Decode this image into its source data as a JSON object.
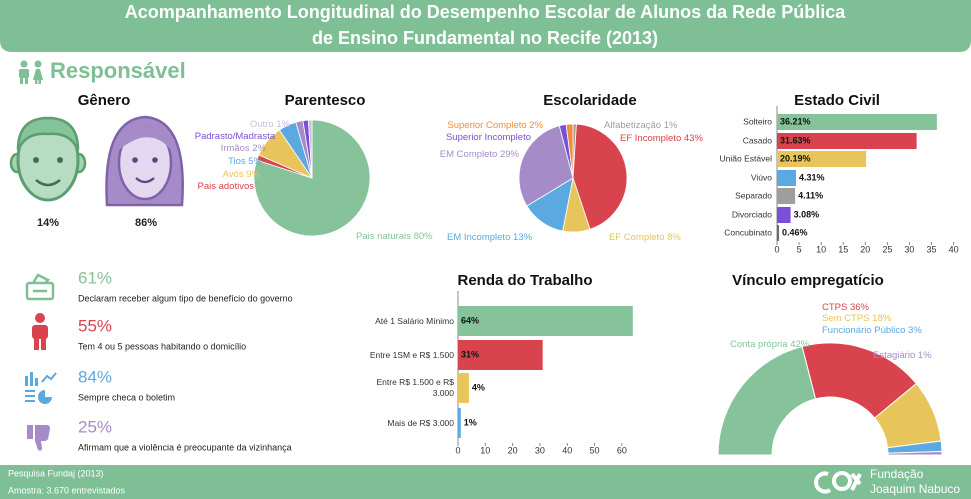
{
  "header": {
    "title": [
      "Acompanhamento Longitudinal do Desempenho Escolar de Alunos da Rede Pública",
      "de Ensino Fundamental no Recife (2013)"
    ]
  },
  "section": "Responsável",
  "gender": {
    "title": "Gênero",
    "items": [
      "14%",
      "86%"
    ]
  },
  "indicators": [
    {
      "value": "61%",
      "text": "Declaram receber algum tipo de benefício do governo",
      "color": "#86c29a"
    },
    {
      "value": "55%",
      "text": "Tem 4 ou 5 pessoas habitando o domicílio",
      "color": "#d9434e"
    },
    {
      "value": "84%",
      "text": "Sempre checa o boletim",
      "color": "#5aa9e0"
    },
    {
      "value": "25%",
      "text": "Afirmam que a violência é preocupante da vizinhança",
      "color": "#a58cc8"
    }
  ],
  "footer": {
    "source": "Pesquisa Fundaj (2013)",
    "sample": "Amostra: 3.670 entrevistados",
    "logo": [
      "Fundação",
      "Joaquim Nabuco"
    ]
  },
  "chart_data": [
    {
      "type": "pie",
      "title": "Parentesco",
      "categories": [
        "Pais naturais",
        "Pais adotivos",
        "Avós",
        "Tios",
        "Irmãos",
        "Padrasto/Madrasta",
        "Outro"
      ],
      "values": [
        80,
        1.5,
        9,
        5,
        2,
        1.5,
        1
      ],
      "value_labels": [
        "80%",
        null,
        "9%",
        "5%",
        "2%",
        null,
        "1%"
      ],
      "colors": [
        "#86c29a",
        "#d9434e",
        "#e8c55a",
        "#5aa9e0",
        "#a58cc8",
        "#7b4fd8",
        "#c6c0e0"
      ]
    },
    {
      "type": "pie",
      "title": "Escolaridade",
      "categories": [
        "Alfabetização",
        "EF Incompleto",
        "EF Completo",
        "EM Incompleto",
        "EM Completo",
        "Superior Incompleto",
        "Superior Completo"
      ],
      "values": [
        1,
        43,
        8,
        13,
        29,
        2,
        2
      ],
      "value_labels": [
        "1%",
        "43%",
        "8%",
        "13%",
        "29%",
        null,
        "2%"
      ],
      "colors": [
        "#9e9e9e",
        "#d9434e",
        "#e8c55a",
        "#5aa9e0",
        "#a58cc8",
        "#7b4fd8",
        "#f08c3a"
      ]
    },
    {
      "type": "bar",
      "orientation": "horizontal",
      "title": "Estado Civil",
      "categories": [
        "Solteiro",
        "Casado",
        "União Estável",
        "Viúvo",
        "Separado",
        "Divorciado",
        "Concubinato"
      ],
      "values": [
        36.21,
        31.63,
        20.19,
        4.31,
        4.11,
        3.08,
        0.46
      ],
      "value_labels": [
        "36.21%",
        "31.63%",
        "20.19%",
        "4.31%",
        "4.11%",
        "3.08%",
        "0.46%"
      ],
      "colors": [
        "#86c29a",
        "#d9434e",
        "#e8c55a",
        "#5aa9e0",
        "#9e9e9e",
        "#7b4fd8",
        "#6d6d6d"
      ],
      "xlim": [
        0,
        41
      ],
      "xticks": [
        0,
        5,
        10,
        15,
        20,
        25,
        30,
        35,
        40
      ]
    },
    {
      "type": "bar",
      "orientation": "horizontal",
      "title": "Renda do Trabalho",
      "categories": [
        "Até 1 Salário Mínimo",
        "Entre 1SM e R$ 1.500",
        "Entre R$ 1.500 e R$ 3.000",
        "Mais de R$ 3.000"
      ],
      "values": [
        64,
        31,
        4,
        1
      ],
      "value_labels": [
        "64%",
        "31%",
        "4%",
        "1%"
      ],
      "colors": [
        "#86c29a",
        "#d9434e",
        "#e8c55a",
        "#5aa9e0"
      ],
      "xlim": [
        0,
        67
      ],
      "xticks": [
        0,
        10,
        20,
        30,
        40,
        50,
        60
      ]
    },
    {
      "type": "semidonut",
      "title": "Vínculo empregatício",
      "categories": [
        "Conta própria",
        "CTPS",
        "Sem CTPS",
        "Funcionário Público",
        "Estagiário"
      ],
      "values": [
        42,
        36,
        18,
        3,
        1
      ],
      "value_labels": [
        "42%",
        "36%",
        "18%",
        "3%",
        "1%"
      ],
      "colors": [
        "#86c29a",
        "#d9434e",
        "#e8c55a",
        "#5aa9e0",
        "#a58cc8"
      ]
    }
  ]
}
